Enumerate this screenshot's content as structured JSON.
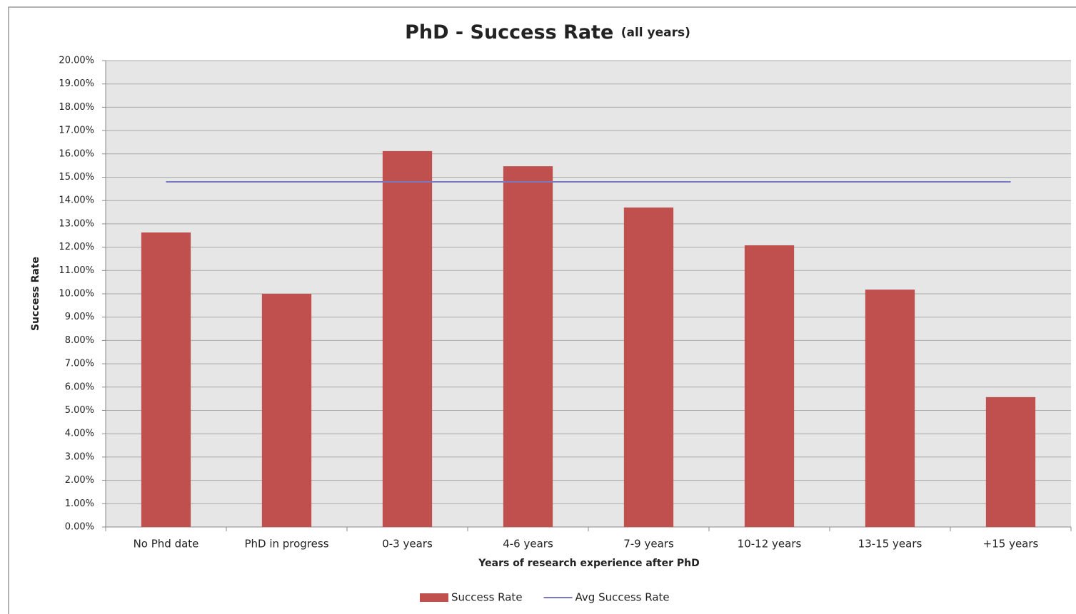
{
  "chart_data": {
    "type": "bar",
    "title": "PhD - Success Rate",
    "subtitle": "(all years)",
    "x_label": "Years of research experience after PhD",
    "y_label": "Success Rate",
    "categories": [
      "No Phd date",
      "PhD in progress",
      "0-3 years",
      "4-6 years",
      "7-9 years",
      "10-12 years",
      "13-15 years",
      "+15 years"
    ],
    "series": [
      {
        "name": "Success Rate",
        "type": "bar",
        "color": "#c0504d",
        "values": [
          12.63,
          10.0,
          16.12,
          15.47,
          13.7,
          12.08,
          10.18,
          5.57
        ]
      },
      {
        "name": "Avg Success Rate",
        "type": "line",
        "color": "#7a78c0",
        "values": [
          14.8,
          14.8,
          14.8,
          14.8,
          14.8,
          14.8,
          14.8,
          14.8
        ]
      }
    ],
    "ylim": [
      0,
      20
    ],
    "yticks": [
      {
        "value": 0,
        "label": "0.00%"
      },
      {
        "value": 1,
        "label": "1.00%"
      },
      {
        "value": 2,
        "label": "2.00%"
      },
      {
        "value": 3,
        "label": "3.00%"
      },
      {
        "value": 4,
        "label": "4.00%"
      },
      {
        "value": 5,
        "label": "5.00%"
      },
      {
        "value": 6,
        "label": "6.00%"
      },
      {
        "value": 7,
        "label": "7.00%"
      },
      {
        "value": 8,
        "label": "8.00%"
      },
      {
        "value": 9,
        "label": "9.00%"
      },
      {
        "value": 10,
        "label": "10.00%"
      },
      {
        "value": 11,
        "label": "11.00%"
      },
      {
        "value": 12,
        "label": "12.00%"
      },
      {
        "value": 13,
        "label": "13.00%"
      },
      {
        "value": 14,
        "label": "14.00%"
      },
      {
        "value": 15,
        "label": "15.00%"
      },
      {
        "value": 16,
        "label": "16.00%"
      },
      {
        "value": 17,
        "label": "17.00%"
      },
      {
        "value": 18,
        "label": "18.00%"
      },
      {
        "value": 19,
        "label": "19.00%"
      },
      {
        "value": 20,
        "label": "20.00%"
      }
    ],
    "grid": true,
    "legend": "bottom"
  }
}
